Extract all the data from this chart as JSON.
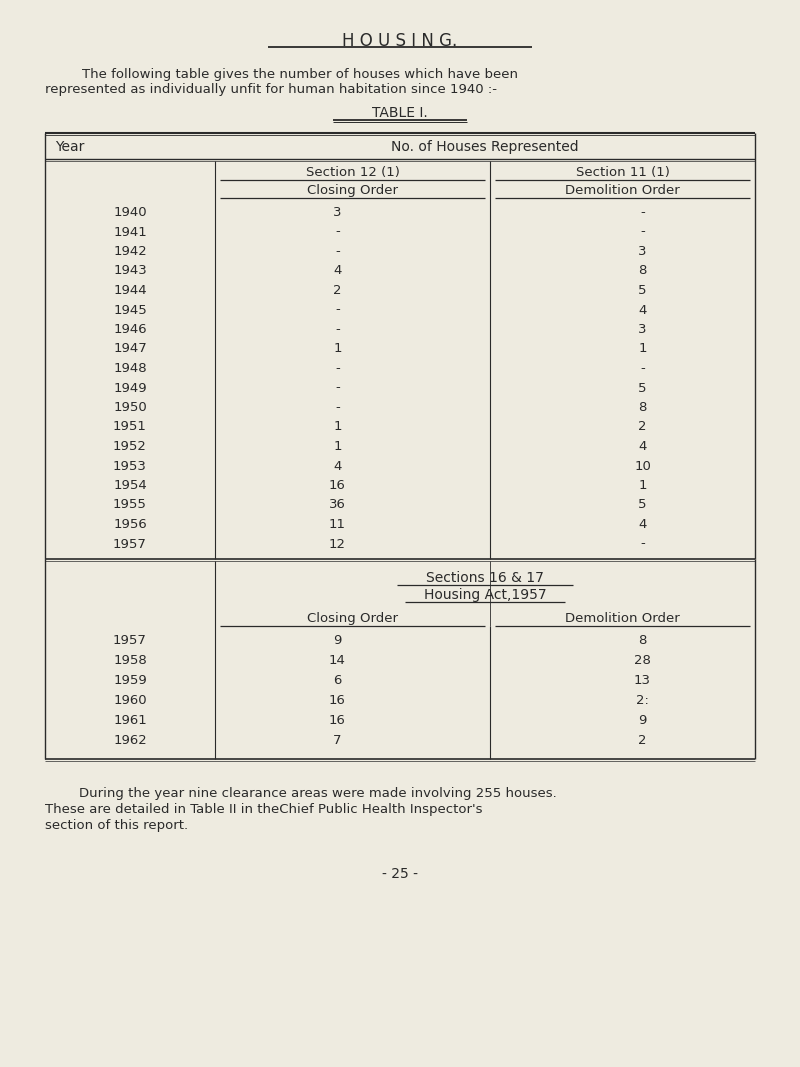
{
  "bg_color": "#eeebe0",
  "title": "H O U S I N G.",
  "intro_line1": "    The following table gives the number of houses which have been",
  "intro_line2": "represented as individually unfit for human habitation since 1940 :-",
  "table_title": "TABLE I.",
  "col_header_main": "No. of Houses Represented",
  "col_header_sec12": "Section 12 (1)",
  "col_header_sec12_sub": "Closing Order",
  "col_header_sec11": "Section 11 (1)",
  "col_header_sec11_sub": "Demolition Order",
  "year_label": "Year",
  "part1_rows": [
    [
      "1940",
      "3",
      "-"
    ],
    [
      "1941",
      "-",
      "-"
    ],
    [
      "1942",
      "-",
      "3"
    ],
    [
      "1943",
      "4",
      "8"
    ],
    [
      "1944",
      "2",
      "5"
    ],
    [
      "1945",
      "-",
      "4"
    ],
    [
      "1946",
      "-",
      "3"
    ],
    [
      "1947",
      "1",
      "1"
    ],
    [
      "1948",
      "-",
      "-"
    ],
    [
      "1949",
      "-",
      "5"
    ],
    [
      "1950",
      "-",
      "8"
    ],
    [
      "1951",
      "1",
      "2"
    ],
    [
      "1952",
      "1",
      "4"
    ],
    [
      "1953",
      "4",
      "10"
    ],
    [
      "1954",
      "16",
      "1"
    ],
    [
      "1955",
      "36",
      "5"
    ],
    [
      "1956",
      "11",
      "4"
    ],
    [
      "1957",
      "12",
      "-"
    ]
  ],
  "part2_header": "Sections 16 & 17",
  "part2_header2": "Housing Act,1957",
  "part2_col1": "Closing Order",
  "part2_col2": "Demolition Order",
  "part2_rows": [
    [
      "1957",
      "9",
      "8"
    ],
    [
      "1958",
      "14",
      "28"
    ],
    [
      "1959",
      "6",
      "13"
    ],
    [
      "1960",
      "16",
      "2:"
    ],
    [
      "1961",
      "16",
      "9"
    ],
    [
      "1962",
      "7",
      "2"
    ]
  ],
  "footer_indent": "        During the year nine clearance areas were made involving 255 houses.",
  "footer_line2": "These are detailed in Table II in theChief Public Health Inspector's",
  "footer_line3": "section of this report.",
  "page_number": "- 25 -",
  "text_color": "#2a2a2a",
  "line_color": "#2a2a2a"
}
